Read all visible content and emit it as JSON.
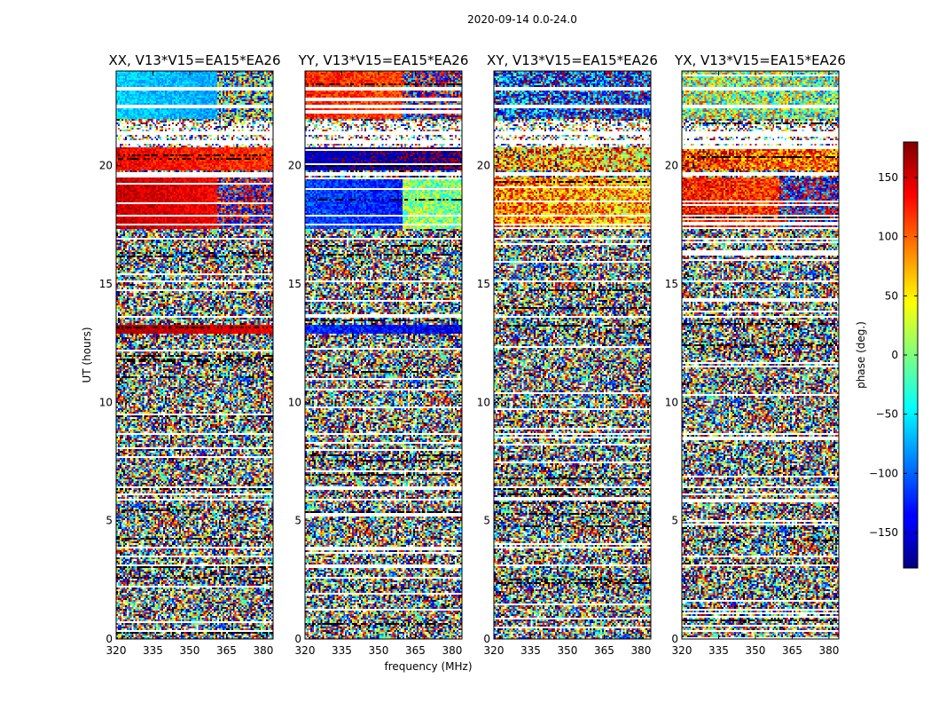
{
  "chart_data": {
    "type": "heatmap",
    "suptitle": "2020-09-14 0.0-24.0",
    "xlabel": "frequency (MHz)",
    "ylabel": "UT (hours)",
    "xlim": [
      320,
      384
    ],
    "ylim": [
      0,
      24
    ],
    "xticks": [
      320,
      335,
      350,
      365,
      380
    ],
    "yticks": [
      0,
      5,
      10,
      15,
      20
    ],
    "panels": [
      {
        "title": "XX, V13*V15=EA15*EA26",
        "regions": [
          {
            "t0": 22.0,
            "t1": 24.0,
            "f0": 320,
            "f1": 361,
            "phase": -60,
            "noise": 22
          },
          {
            "t0": 22.0,
            "t1": 24.0,
            "f0": 361,
            "f1": 384,
            "phase": -20,
            "noise": 160
          },
          {
            "t0": 20.8,
            "t1": 21.9,
            "f0": 320,
            "f1": 384,
            "phase": 0,
            "noise": 180
          },
          {
            "t0": 19.8,
            "t1": 20.8,
            "f0": 320,
            "f1": 384,
            "phase": 140,
            "noise": 25
          },
          {
            "t0": 17.3,
            "t1": 19.5,
            "f0": 320,
            "f1": 361,
            "phase": 155,
            "noise": 20
          },
          {
            "t0": 17.3,
            "t1": 19.5,
            "f0": 361,
            "f1": 384,
            "phase": -160,
            "noise": 110
          },
          {
            "t0": 12.9,
            "t1": 13.3,
            "f0": 320,
            "f1": 384,
            "phase": 165,
            "noise": 15
          }
        ]
      },
      {
        "title": "YY, V13*V15=EA15*EA26",
        "regions": [
          {
            "t0": 22.0,
            "t1": 24.0,
            "f0": 320,
            "f1": 360,
            "phase": 125,
            "noise": 30
          },
          {
            "t0": 22.0,
            "t1": 24.0,
            "f0": 360,
            "f1": 384,
            "phase": -150,
            "noise": 120
          },
          {
            "t0": 20.8,
            "t1": 21.9,
            "f0": 320,
            "f1": 384,
            "phase": 0,
            "noise": 180
          },
          {
            "t0": 19.8,
            "t1": 20.8,
            "f0": 320,
            "f1": 384,
            "phase": -155,
            "noise": 25
          },
          {
            "t0": 17.3,
            "t1": 19.5,
            "f0": 320,
            "f1": 360,
            "phase": -110,
            "noise": 30
          },
          {
            "t0": 17.3,
            "t1": 19.5,
            "f0": 360,
            "f1": 384,
            "phase": 25,
            "noise": 60
          },
          {
            "t0": 12.9,
            "t1": 13.3,
            "f0": 320,
            "f1": 384,
            "phase": -120,
            "noise": 30
          }
        ]
      },
      {
        "title": "XY, V13*V15=EA15*EA26",
        "regions": [
          {
            "t0": 22.0,
            "t1": 24.0,
            "f0": 320,
            "f1": 384,
            "phase": -100,
            "noise": 110
          },
          {
            "t0": 20.8,
            "t1": 21.9,
            "f0": 320,
            "f1": 384,
            "phase": 0,
            "noise": 180
          },
          {
            "t0": 19.8,
            "t1": 20.8,
            "f0": 320,
            "f1": 384,
            "phase": 90,
            "noise": 110
          },
          {
            "t0": 17.3,
            "t1": 19.5,
            "f0": 320,
            "f1": 384,
            "phase": 95,
            "noise": 75
          }
        ]
      },
      {
        "title": "YX, V13*V15=EA15*EA26",
        "regions": [
          {
            "t0": 22.0,
            "t1": 24.0,
            "f0": 320,
            "f1": 384,
            "phase": 20,
            "noise": 110
          },
          {
            "t0": 20.8,
            "t1": 21.9,
            "f0": 320,
            "f1": 384,
            "phase": 0,
            "noise": 180
          },
          {
            "t0": 19.8,
            "t1": 20.8,
            "f0": 320,
            "f1": 384,
            "phase": 120,
            "noise": 70
          },
          {
            "t0": 17.3,
            "t1": 19.5,
            "f0": 320,
            "f1": 360,
            "phase": 130,
            "noise": 45
          },
          {
            "t0": 17.3,
            "t1": 19.5,
            "f0": 360,
            "f1": 384,
            "phase": -130,
            "noise": 110
          }
        ]
      }
    ],
    "flagged_ut_bands": [
      [
        23.2,
        23.35
      ],
      [
        22.45,
        22.55
      ],
      [
        21.3,
        21.42
      ],
      [
        20.95,
        21.05
      ],
      [
        19.6,
        19.7
      ],
      [
        17.85,
        17.9
      ],
      [
        17.5,
        17.55
      ],
      [
        16.85,
        16.95
      ],
      [
        15.1,
        15.15
      ],
      [
        13.55,
        13.65
      ],
      [
        12.35,
        12.4
      ],
      [
        11.0,
        11.05
      ],
      [
        9.05,
        9.1
      ],
      [
        8.6,
        8.7
      ],
      [
        6.35,
        6.45
      ],
      [
        5.85,
        5.95
      ],
      [
        3.1,
        3.15
      ],
      [
        1.55,
        1.6
      ],
      [
        0.8,
        0.85
      ]
    ],
    "colorbar": {
      "label": "phase (deg.)",
      "range": [
        -180,
        180
      ],
      "ticks": [
        150,
        100,
        50,
        0,
        -50,
        -100,
        -150
      ],
      "tick_labels": [
        "150",
        "100",
        "50",
        "0",
        "−50",
        "−100",
        "−150"
      ],
      "colormap": "jet"
    }
  }
}
